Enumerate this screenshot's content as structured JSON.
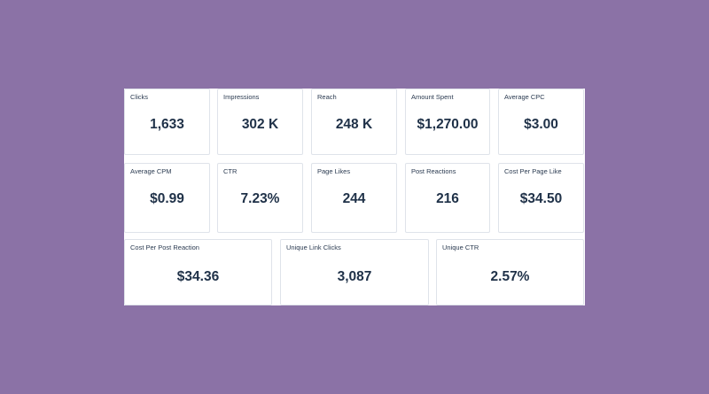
{
  "metrics_row1": [
    {
      "label": "Clicks",
      "value": "1,633"
    },
    {
      "label": "Impressions",
      "value": "302 K"
    },
    {
      "label": "Reach",
      "value": "248 K"
    },
    {
      "label": "Amount Spent",
      "value": "$1,270.00"
    },
    {
      "label": "Average CPC",
      "value": "$3.00"
    }
  ],
  "metrics_row2": [
    {
      "label": "Average CPM",
      "value": "$0.99"
    },
    {
      "label": "CTR",
      "value": "7.23%"
    },
    {
      "label": "Page Likes",
      "value": "244"
    },
    {
      "label": "Post Reactions",
      "value": "216"
    },
    {
      "label": "Cost Per Page Like",
      "value": "$34.50"
    }
  ],
  "metrics_row3": [
    {
      "label": "Cost Per Post Reaction",
      "value": "$34.36"
    },
    {
      "label": "Unique Link Clicks",
      "value": "3,087"
    },
    {
      "label": "Unique CTR",
      "value": "2.57%"
    }
  ],
  "colors": {
    "background": "#8b72a6",
    "panel": "#ffffff",
    "card_border": "#dfe3ea",
    "text": "#1f3148"
  }
}
